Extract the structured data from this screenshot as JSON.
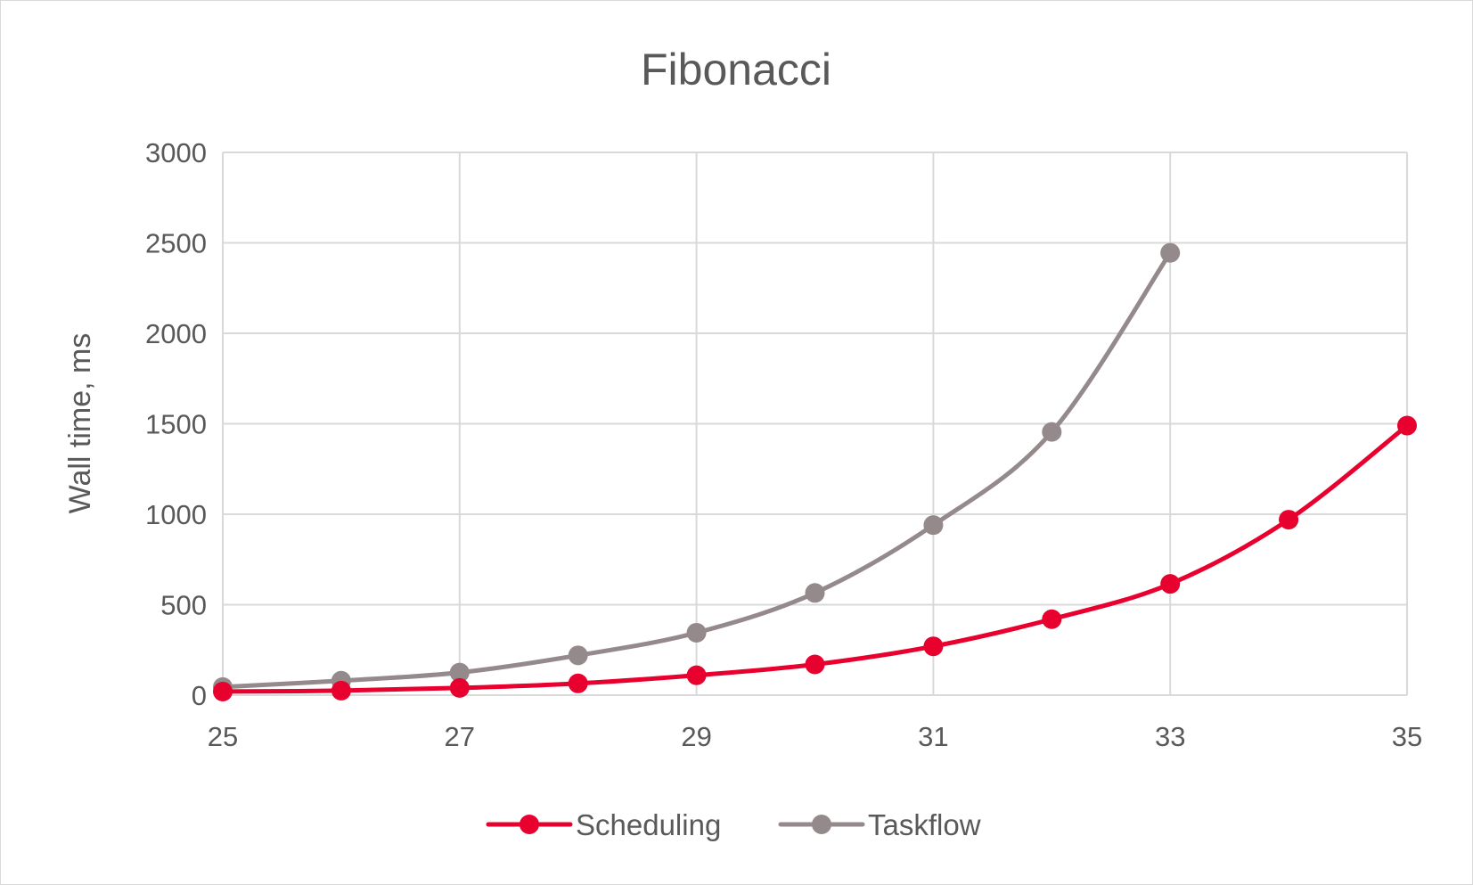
{
  "chart_data": {
    "type": "line",
    "title": "Fibonacci",
    "xlabel": "",
    "ylabel": "Wall time, ms",
    "xlim": [
      25,
      35
    ],
    "ylim": [
      0,
      3000
    ],
    "x_ticks": [
      "25",
      "27",
      "29",
      "31",
      "33",
      "35"
    ],
    "y_ticks": [
      "0",
      "500",
      "1000",
      "1500",
      "2000",
      "2500",
      "3000"
    ],
    "grid": true,
    "legend_position": "bottom",
    "smooth": true,
    "series": [
      {
        "name": "Scheduling",
        "color": "#e8002e",
        "x": [
          25,
          26,
          27,
          28,
          29,
          30,
          31,
          32,
          33,
          34,
          35
        ],
        "values": [
          20,
          25,
          40,
          65,
          110,
          170,
          270,
          420,
          615,
          970,
          1490
        ]
      },
      {
        "name": "Taskflow",
        "color": "#958a8b",
        "x": [
          25,
          26,
          27,
          28,
          29,
          30,
          31,
          32,
          33
        ],
        "values": [
          45,
          80,
          125,
          220,
          345,
          565,
          940,
          1455,
          2445
        ]
      }
    ]
  }
}
